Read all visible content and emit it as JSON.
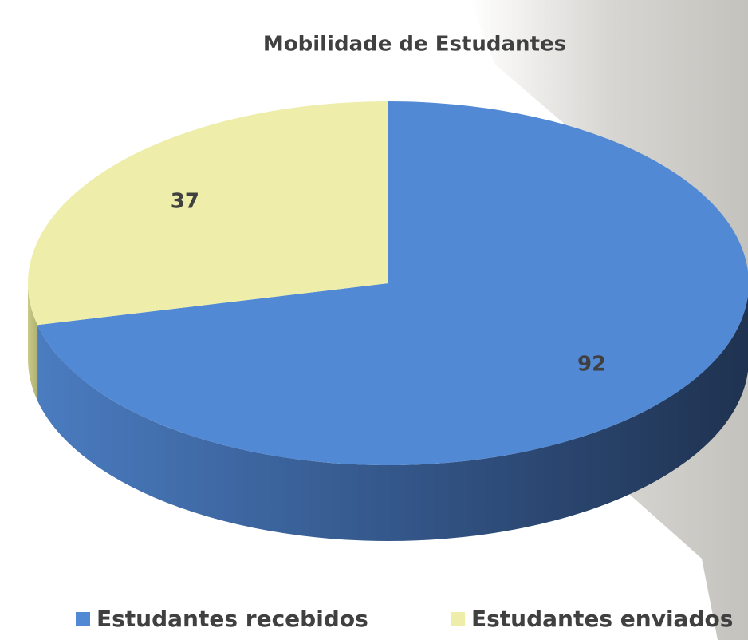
{
  "chart_data": {
    "type": "pie",
    "title": "Mobilidade de Estudantes",
    "categories": [
      "Estudantes recebidos",
      "Estudantes enviados"
    ],
    "values": [
      92,
      37
    ],
    "colors": [
      "#5189d4",
      "#eeeeaa"
    ],
    "legend": "bottom"
  }
}
